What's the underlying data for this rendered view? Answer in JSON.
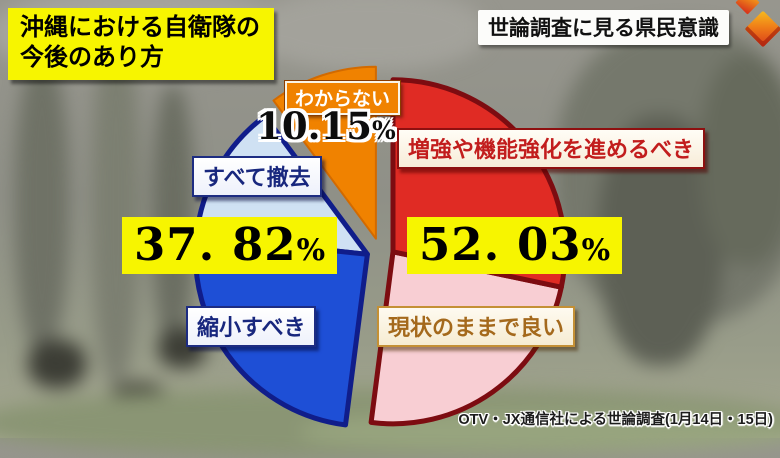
{
  "header": {
    "title_line1": "沖縄における自衛隊の",
    "title_line2": "今後のあり方",
    "badge": "世論調査に見る県民意識"
  },
  "accent_colors": {
    "highlight_yellow": "#f7f500",
    "group_red": "#e02b24",
    "group_pink": "#f8ced3",
    "group_blue": "#1e4fd6",
    "group_lightblue": "#cfe1f3",
    "unknown_orange": "#f08200",
    "outline_maroon": "#7d0c11",
    "outline_navy": "#101d8a"
  },
  "chart_data": {
    "type": "pie",
    "title": "沖縄における自衛隊の今後のあり方",
    "source": "OTV・JX通信社による世論調査(1月14日・15日)",
    "legend_position": "callouts-around-pie",
    "slices": [
      {
        "label": "増強や機能強化を進めるべき",
        "group": "strengthen-or-keep",
        "color": "#e02b24",
        "visual_percent": 28.3
      },
      {
        "label": "現状のままで良い",
        "group": "strengthen-or-keep",
        "color": "#f8ced3",
        "visual_percent": 23.73
      },
      {
        "label": "縮小すべき",
        "group": "reduce-or-remove",
        "color": "#1e4fd6",
        "visual_percent": 24.64
      },
      {
        "label": "すべて撤去",
        "group": "reduce-or-remove",
        "color": "#cfe1f3",
        "visual_percent": 13.18
      },
      {
        "label": "わからない",
        "group": "unknown",
        "color": "#f08200",
        "visual_percent": 10.15
      }
    ],
    "group_styles": {
      "strengthen-or-keep": {
        "outline": "#7d0c11",
        "width": 5
      },
      "reduce-or-remove": {
        "outline": "#101d8a",
        "width": 5
      },
      "unknown": {
        "outline": "#d26a00",
        "width": 2
      }
    },
    "draw_order": [
      4,
      3,
      2,
      1,
      0
    ],
    "labeled_values": [
      {
        "segments": "増強や機能強化を進めるべき+現状のままで良い",
        "value": 52.03,
        "display": "52. 03",
        "suffix": "%"
      },
      {
        "segments": "縮小すべき+すべて撤去",
        "value": 37.82,
        "display": "37. 82",
        "suffix": "%"
      },
      {
        "segments": "わからない",
        "value": 10.15,
        "display": "10.15",
        "suffix": "%"
      }
    ]
  }
}
